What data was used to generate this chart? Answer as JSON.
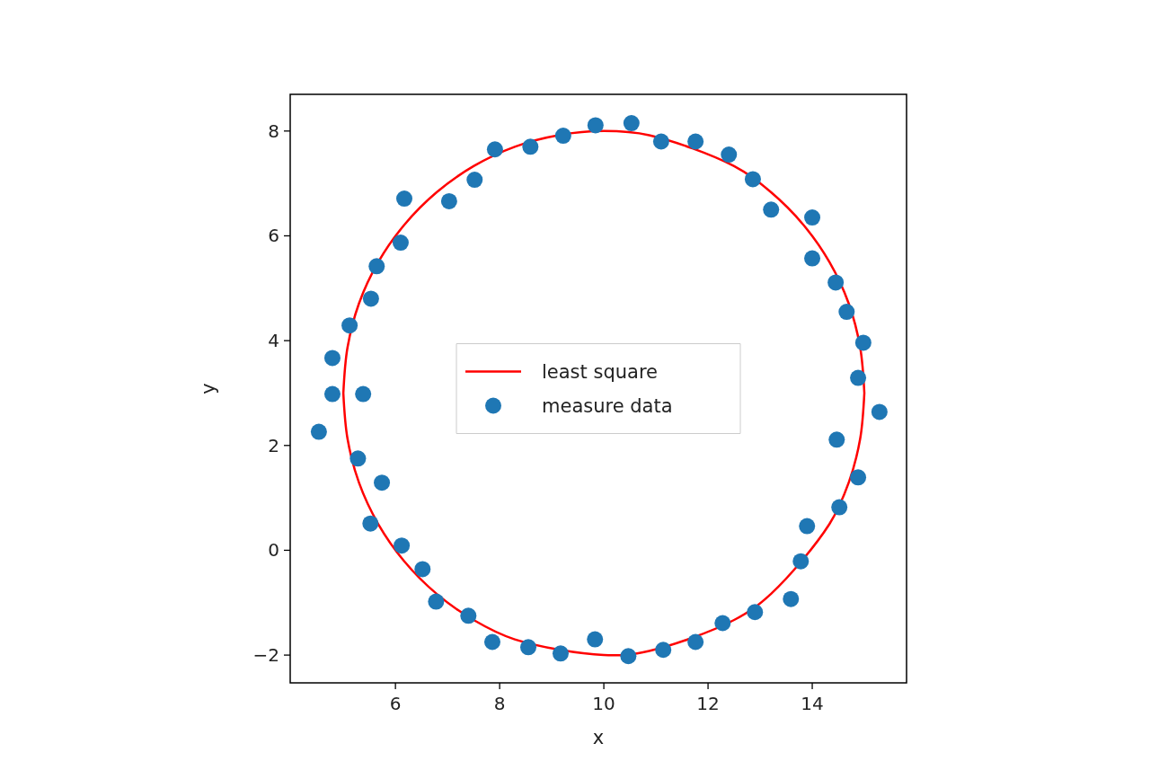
{
  "chart_data": {
    "type": "scatter",
    "xlabel": "x",
    "ylabel": "y",
    "xlim": [
      3.98,
      15.81
    ],
    "ylim": [
      -2.53,
      8.7
    ],
    "xticks": [
      6,
      8,
      10,
      12,
      14
    ],
    "yticks": [
      {
        "value": -2,
        "label": "−2"
      },
      0,
      2,
      4,
      6,
      8
    ],
    "legend": "center",
    "grid": false,
    "marker": "circle",
    "series": [
      {
        "name": "least square",
        "type": "line",
        "marker": "none",
        "color": "#ff0000",
        "x": [
          5,
          5.08,
          5.3,
          5.67,
          6.17,
          6.79,
          7.5,
          8.29,
          9.13,
          10,
          10.87,
          12.5,
          13.21,
          13.83,
          14.33,
          14.7,
          14.92,
          15,
          null,
          5,
          5.08,
          5.3,
          5.67,
          6.17,
          6.79,
          7.5,
          8.29,
          10,
          10.87,
          12.5,
          13.21,
          14.33,
          14.7,
          14.92,
          15
        ],
        "values": [
          3,
          3.87,
          4.71,
          5.5,
          6.21,
          6.83,
          7.33,
          7.7,
          7.92,
          8,
          7.92,
          7.33,
          6.83,
          6.21,
          5.5,
          4.71,
          3.87,
          3,
          null,
          3,
          2.13,
          1.29,
          0.5,
          -0.21,
          -0.83,
          -1.33,
          -1.7,
          -2,
          -1.92,
          -1.33,
          -0.83,
          0.5,
          1.29,
          2.13,
          3
        ]
      },
      {
        "name": "measure data",
        "type": "scatter",
        "color": "#1f77b4",
        "x": [
          4.53,
          4.79,
          4.79,
          5.12,
          5.28,
          5.38,
          5.52,
          5.53,
          5.64,
          5.74,
          6.1,
          6.12,
          6.17,
          6.52,
          6.78,
          7.03,
          7.4,
          7.52,
          7.86,
          7.91,
          8.55,
          8.59,
          9.17,
          9.22,
          9.83,
          9.84,
          10.47,
          10.53,
          11.14,
          11.1,
          11.76,
          11.76,
          12.28,
          12.4,
          12.9,
          12.86,
          13.21,
          13.59,
          13.78,
          13.9,
          14,
          14,
          14.45,
          14.47,
          14.52,
          14.66,
          14.88,
          14.88,
          14.98,
          15.29
        ],
        "values": [
          2.26,
          3.67,
          2.98,
          4.29,
          1.75,
          2.98,
          0.51,
          4.8,
          5.42,
          1.29,
          5.87,
          0.09,
          6.71,
          -0.36,
          -0.98,
          6.66,
          -1.25,
          7.07,
          -1.75,
          7.65,
          -1.85,
          7.7,
          -1.97,
          7.91,
          -1.7,
          8.11,
          -2.02,
          8.15,
          -1.9,
          7.8,
          -1.75,
          7.8,
          -1.39,
          7.55,
          -1.18,
          7.08,
          6.5,
          -0.93,
          -0.21,
          0.46,
          6.35,
          5.57,
          5.11,
          2.11,
          0.82,
          4.55,
          1.39,
          3.29,
          3.96,
          2.64
        ]
      }
    ]
  }
}
